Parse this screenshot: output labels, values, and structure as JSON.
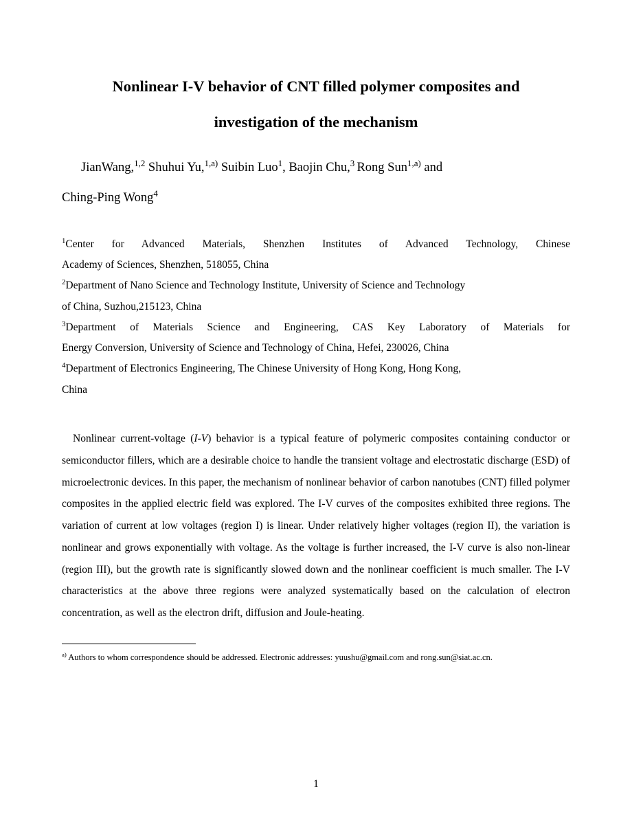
{
  "title_line1": "Nonlinear I-V behavior of CNT filled polymer composites and",
  "title_line2": "investigation of the mechanism",
  "authors": {
    "a1_name": "JianWang,",
    "a1_sup": "1,2",
    "a2_name": " Shuhui Yu,",
    "a2_sup": "1,a)",
    "a3_pre": "  ",
    "a3_name": "Suibin Luo",
    "a3_sup": "1",
    "a4_name": ", Baojin Chu,",
    "a4_sup": "3 ",
    "a5_name": "Rong Sun",
    "a5_sup": "1,a)",
    "a5_post": " and",
    "a6_name": "Ching-Ping Wong",
    "a6_sup": "4"
  },
  "affiliations": {
    "aff1_sup": "1",
    "aff1_line1": "Center for Advanced Materials, Shenzhen Institutes of Advanced Technology, Chinese",
    "aff1_line2": "Academy of Sciences, Shenzhen, 518055, China",
    "aff2_sup": "2",
    "aff2_line1": "Department of Nano Science and Technology Institute, University of Science and Technology",
    "aff2_line2": "of China, Suzhou,215123, China",
    "aff3_sup": "3",
    "aff3_line1": "Department of Materials Science and Engineering, CAS Key Laboratory of Materials for",
    "aff3_line2": "Energy Conversion, University of Science and Technology of China, Hefei, 230026, China",
    "aff4_sup": "4",
    "aff4_line1": "Department of Electronics Engineering, The Chinese University of Hong Kong, Hong Kong,",
    "aff4_line2": "China"
  },
  "abstract": {
    "p1a": "Nonlinear current-voltage (",
    "p1i": "I-V",
    "p1b": ") behavior is a typical feature of polymeric composites containing conductor or semiconductor fillers, which are a desirable choice to handle the transient voltage and electrostatic discharge (ESD) of microelectronic devices. In this paper, the mechanism of nonlinear behavior of carbon nanotubes (CNT) filled polymer composites in the applied electric field was explored. The I-V curves of the composites exhibited three regions. The variation of current at low voltages (region I) is linear. Under relatively higher voltages (region II), the variation is nonlinear and grows exponentially with voltage. As the voltage is further increased, the I-V curve is also non-linear (region III), but the growth rate is significantly slowed down and the nonlinear coefficient is much smaller. The I-V characteristics at the above three regions were analyzed systematically based on the calculation of electron concentration, as well as the electron drift, diffusion and Joule-heating."
  },
  "footnote": {
    "sup": "a)",
    "text": " Authors to whom correspondence should be addressed. Electronic addresses: yuushu@gmail.com and rong.sun@siat.ac.cn."
  },
  "page_number": "1"
}
